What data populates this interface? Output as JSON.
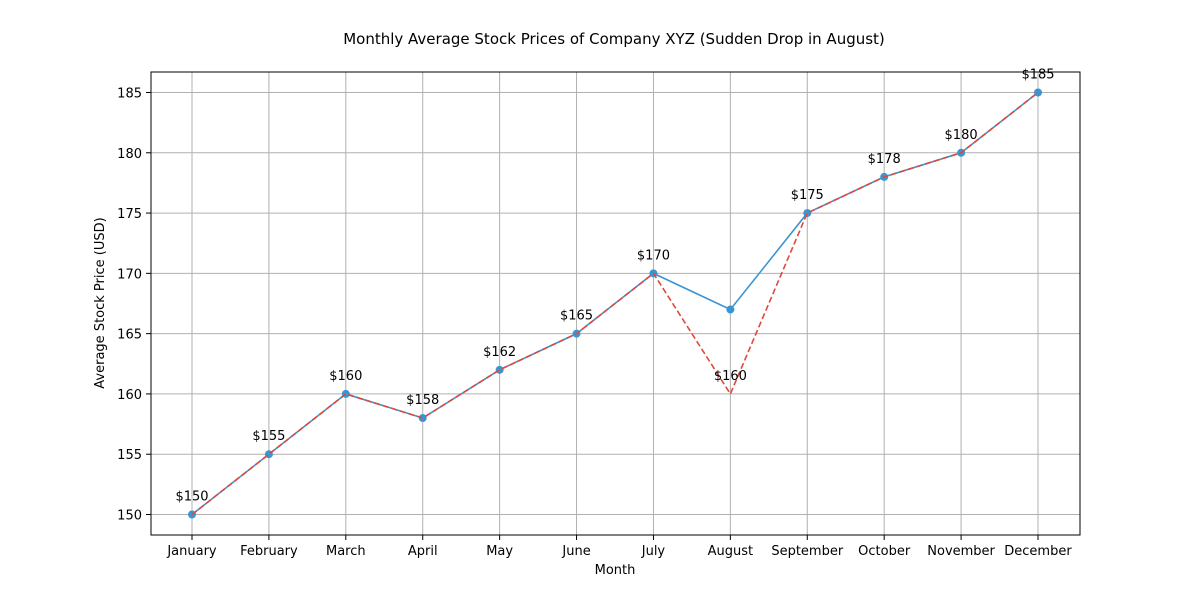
{
  "chart_data": {
    "type": "line",
    "title": "Monthly Average Stock Prices of Company XYZ (Sudden Drop in August)",
    "xlabel": "Month",
    "ylabel": "Average Stock Price (USD)",
    "categories": [
      "January",
      "February",
      "March",
      "April",
      "May",
      "June",
      "July",
      "August",
      "September",
      "October",
      "November",
      "December"
    ],
    "ylim": [
      148.3,
      186.7
    ],
    "yticks": [
      150,
      155,
      160,
      165,
      170,
      175,
      180,
      185
    ],
    "grid": true,
    "series": [
      {
        "values": [
          150,
          155,
          160,
          158,
          162,
          165,
          170,
          167,
          175,
          178,
          180,
          185
        ],
        "color": "#3a96d2",
        "style": "solid",
        "markers": true
      },
      {
        "values": [
          150,
          155,
          160,
          158,
          162,
          165,
          170,
          160,
          175,
          178,
          180,
          185
        ],
        "color": "#e0483c",
        "style": "dashed",
        "markers": false
      }
    ],
    "data_labels": [
      "$150",
      "$155",
      "$160",
      "$158",
      "$162",
      "$165",
      "$170",
      "$160",
      "$175",
      "$178",
      "$180",
      "$185"
    ]
  }
}
